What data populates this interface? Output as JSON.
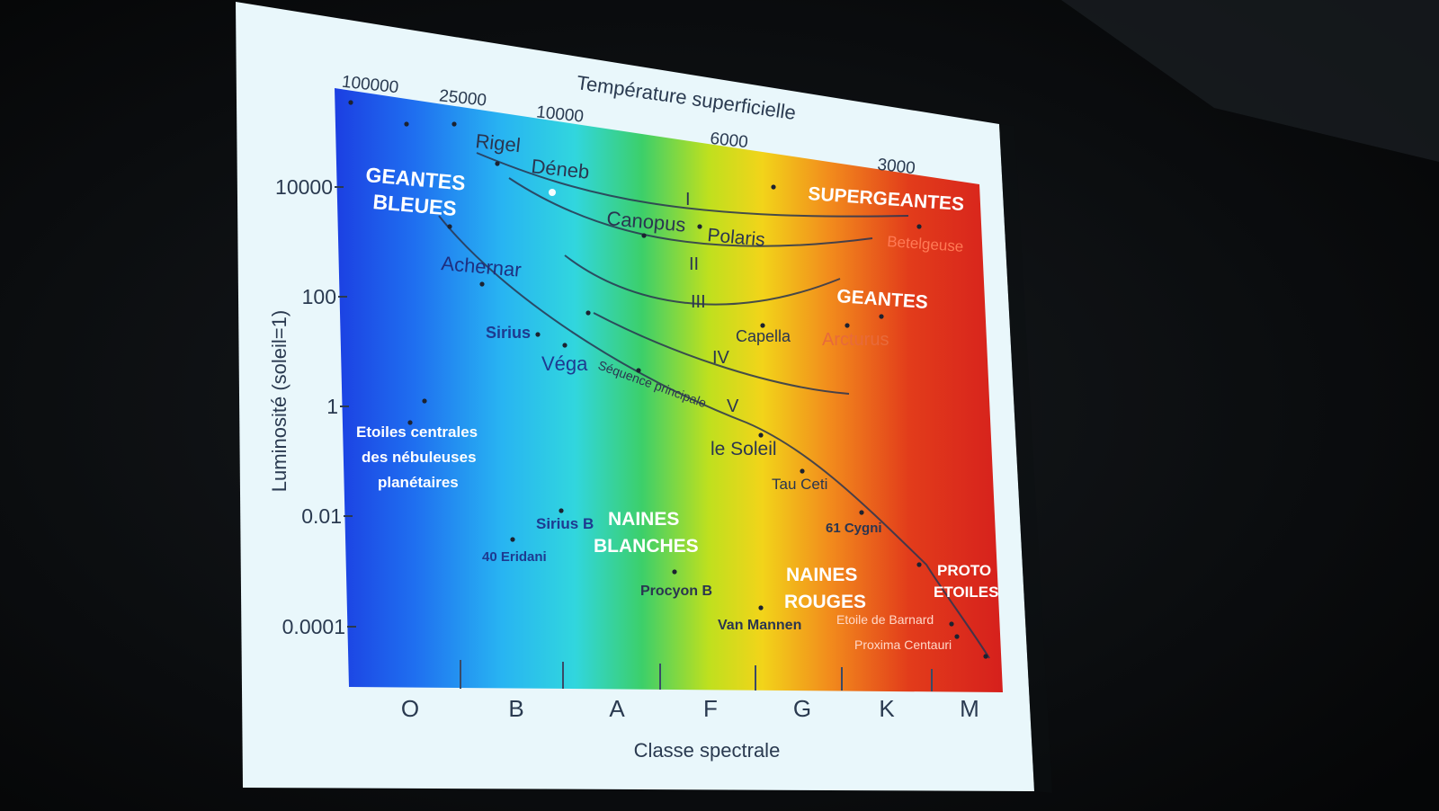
{
  "chart_data": {
    "type": "scatter",
    "title": "",
    "top_axis": {
      "label": "Température superficielle",
      "ticks": [
        "100000",
        "25000",
        "10000",
        "6000",
        "3000"
      ]
    },
    "left_axis": {
      "label": "Luminosité (soleil=1)",
      "ticks": [
        "10000",
        "100",
        "1",
        "0.01",
        "0.0001"
      ],
      "scale": "log"
    },
    "bottom_axis": {
      "label": "Classe spectrale",
      "ticks": [
        "O",
        "B",
        "A",
        "F",
        "G",
        "K",
        "M"
      ]
    },
    "luminosity_classes": [
      "I",
      "II",
      "III",
      "IV",
      "V"
    ],
    "sequence_label": "Séquence principale",
    "regions": {
      "blue_giants": [
        "GEANTES",
        "BLEUES"
      ],
      "supergiants": "SUPERGEANTES",
      "giants": "GEANTES",
      "central_stars": [
        "Etoiles centrales",
        "des nébuleuses",
        "planétaires"
      ],
      "white_dwarfs": [
        "NAINES",
        "BLANCHES"
      ],
      "red_dwarfs": [
        "NAINES",
        "ROUGES"
      ],
      "proto_stars": [
        "PROTO",
        "ETOILES"
      ]
    },
    "stars": [
      {
        "name": "Rigel"
      },
      {
        "name": "Déneb"
      },
      {
        "name": "Canopus"
      },
      {
        "name": "Polaris"
      },
      {
        "name": "Betelgeuse"
      },
      {
        "name": "Achernar"
      },
      {
        "name": "Capella"
      },
      {
        "name": "Arcturus"
      },
      {
        "name": "Sirius"
      },
      {
        "name": "Véga"
      },
      {
        "name": "le Soleil"
      },
      {
        "name": "Tau Ceti"
      },
      {
        "name": "61 Cygni"
      },
      {
        "name": "Sirius B"
      },
      {
        "name": "40 Eridani"
      },
      {
        "name": "Procyon B"
      },
      {
        "name": "Van Mannen"
      },
      {
        "name": "Etoile de Barnard"
      },
      {
        "name": "Proxima Centauri"
      }
    ],
    "colors": {
      "spectrum": [
        "#1e3fe0",
        "#27a8f0",
        "#2fd3e6",
        "#3fd070",
        "#c6e020",
        "#f4d21a",
        "#f08a1c",
        "#e03a1a",
        "#d8221c"
      ],
      "screen": "#e9f7fb",
      "background": "#0a0c0e"
    }
  }
}
